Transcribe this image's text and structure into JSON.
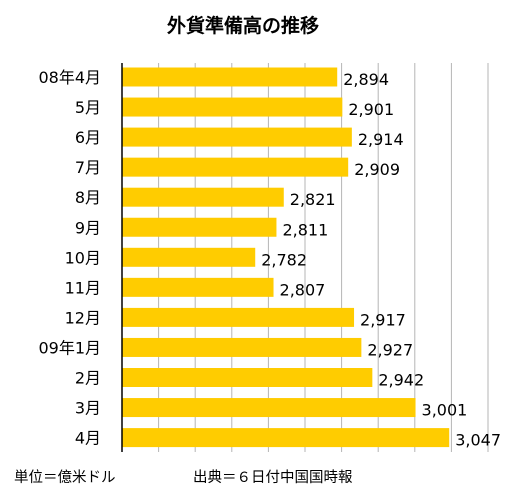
{
  "chart_data": {
    "type": "bar",
    "orientation": "horizontal",
    "title": "外貨準備高の推移",
    "categories": [
      "08年4月",
      "5月",
      "6月",
      "7月",
      "8月",
      "9月",
      "10月",
      "11月",
      "12月",
      "09年1月",
      "2月",
      "3月",
      "4月"
    ],
    "values": [
      2894,
      2901,
      2914,
      2909,
      2821,
      2811,
      2782,
      2807,
      2917,
      2927,
      2942,
      3001,
      3047
    ],
    "value_labels": [
      "2,894",
      "2,901",
      "2,914",
      "2,909",
      "2,821",
      "2,811",
      "2,782",
      "2,807",
      "2,917",
      "2,927",
      "2,942",
      "3,001",
      "3,047"
    ],
    "xlim": [
      2600,
      3100
    ],
    "grid": true,
    "bar_color": "#FFCC00",
    "grid_color": "#b5b5b5",
    "unit_note": "単位＝億米ドル",
    "source_note": "出典＝６日付中国国時報"
  }
}
